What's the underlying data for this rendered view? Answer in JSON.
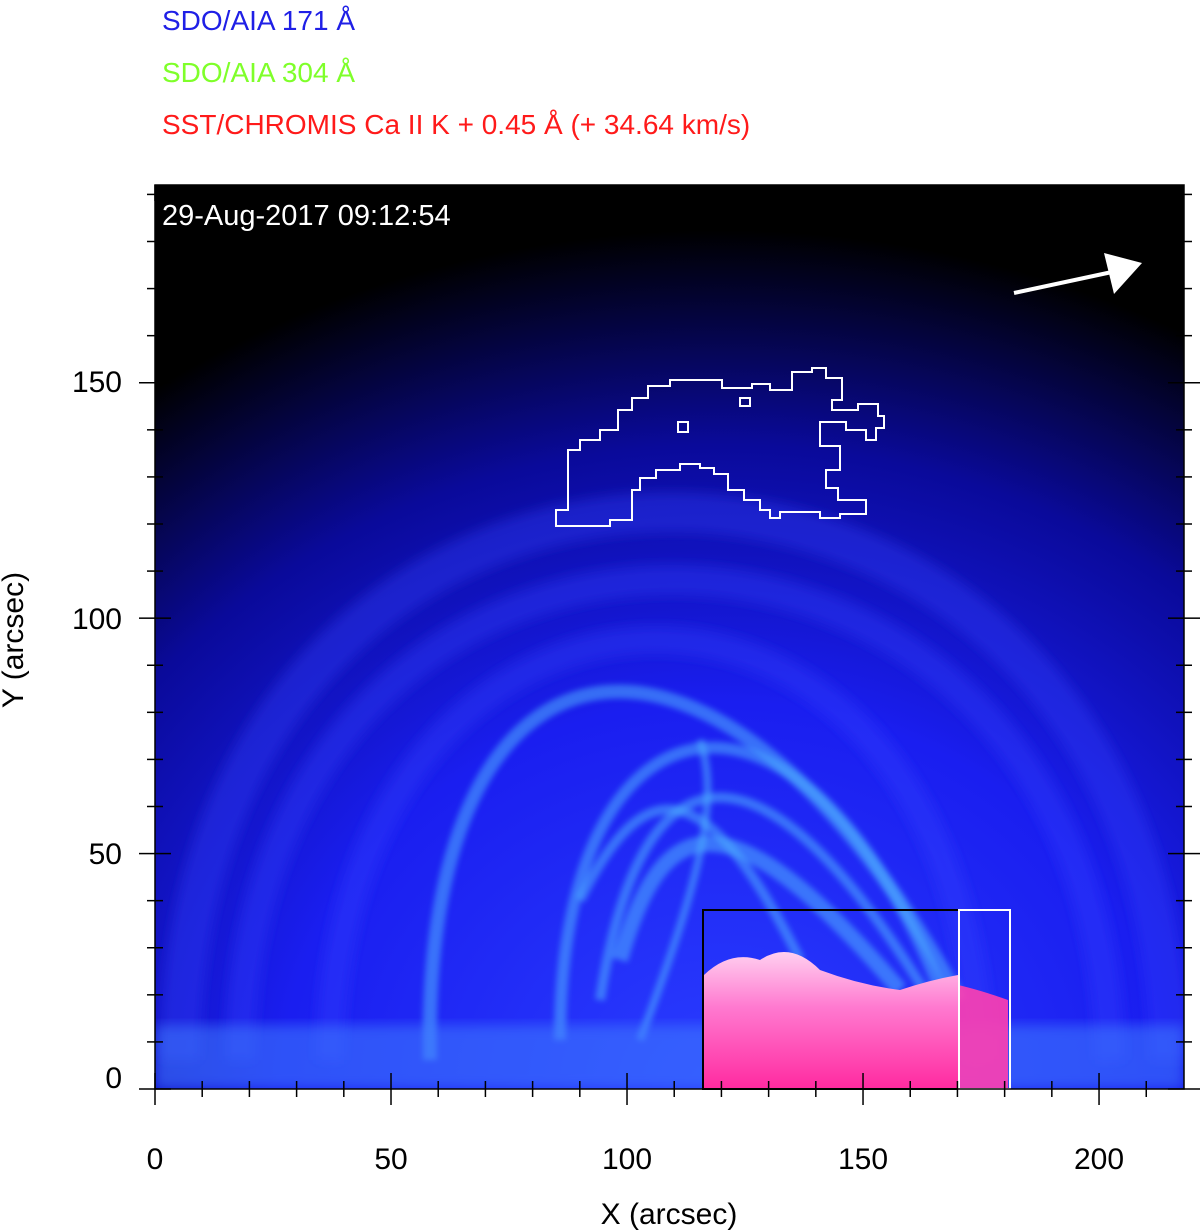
{
  "legend": [
    {
      "text": "SDO/AIA 171 Å",
      "color": "#1f1fe6"
    },
    {
      "text": "SDO/AIA 304 Å",
      "color": "#7fff2a"
    },
    {
      "text": "SST/CHROMIS Ca II K + 0.45 Å (+ 34.64 km/s)",
      "color": "#ff1a1a"
    }
  ],
  "timestamp": "29-Aug-2017 09:12:54",
  "axes": {
    "xlabel": "X (arcsec)",
    "ylabel": "Y (arcsec)",
    "x_ticks": [
      "0",
      "50",
      "100",
      "150",
      "200"
    ],
    "y_ticks": [
      "0",
      "50",
      "100",
      "150"
    ],
    "x_range": [
      0,
      218
    ],
    "y_range": [
      0,
      192
    ]
  },
  "overlays": {
    "chromis_box": {
      "x": [
        116,
        170
      ],
      "y": [
        0,
        38
      ],
      "color": "#000000"
    },
    "white_box": {
      "x": [
        170,
        181
      ],
      "y": [
        0,
        38
      ],
      "color": "#ffffff"
    },
    "arrow": {
      "from": [
        182,
        170
      ],
      "to": [
        210,
        176
      ],
      "color": "#ffffff"
    }
  },
  "colors": {
    "background_top": "#000000",
    "corona": "#1a1aff",
    "loops": "#3fa0ff",
    "chromis": "#ff4fb8"
  }
}
